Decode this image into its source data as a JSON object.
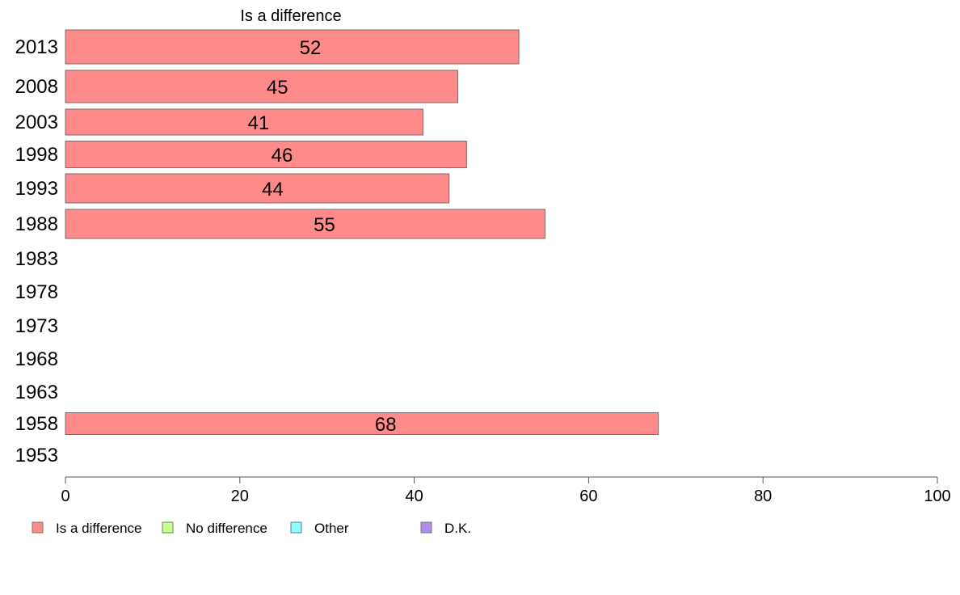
{
  "chart_data": {
    "type": "bar",
    "orientation": "horizontal",
    "title": "Is a difference",
    "xlim": [
      0,
      100
    ],
    "xticks": [
      0,
      20,
      40,
      60,
      80,
      100
    ],
    "categories": [
      "2013",
      "2008",
      "2003",
      "1998",
      "1993",
      "1988",
      "1983",
      "1978",
      "1973",
      "1968",
      "1963",
      "1958",
      "1953"
    ],
    "series": [
      {
        "name": "Is a difference",
        "color": "#FF8A8A",
        "values": [
          52,
          45,
          41,
          46,
          44,
          55,
          null,
          null,
          null,
          null,
          null,
          68,
          null
        ],
        "labels": [
          "52",
          "45",
          "41",
          "46",
          "44",
          "55",
          "",
          "",
          "",
          "",
          "",
          "68",
          ""
        ]
      }
    ],
    "legend": {
      "placement": "bottom",
      "items": [
        {
          "label": "Is a difference",
          "color": "#FF8A8A"
        },
        {
          "label": "No difference",
          "color": "#C6FF8A"
        },
        {
          "label": "Other",
          "color": "#8AFFFF"
        },
        {
          "label": "D.K.",
          "color": "#B38AF0"
        }
      ]
    },
    "grid": false
  }
}
